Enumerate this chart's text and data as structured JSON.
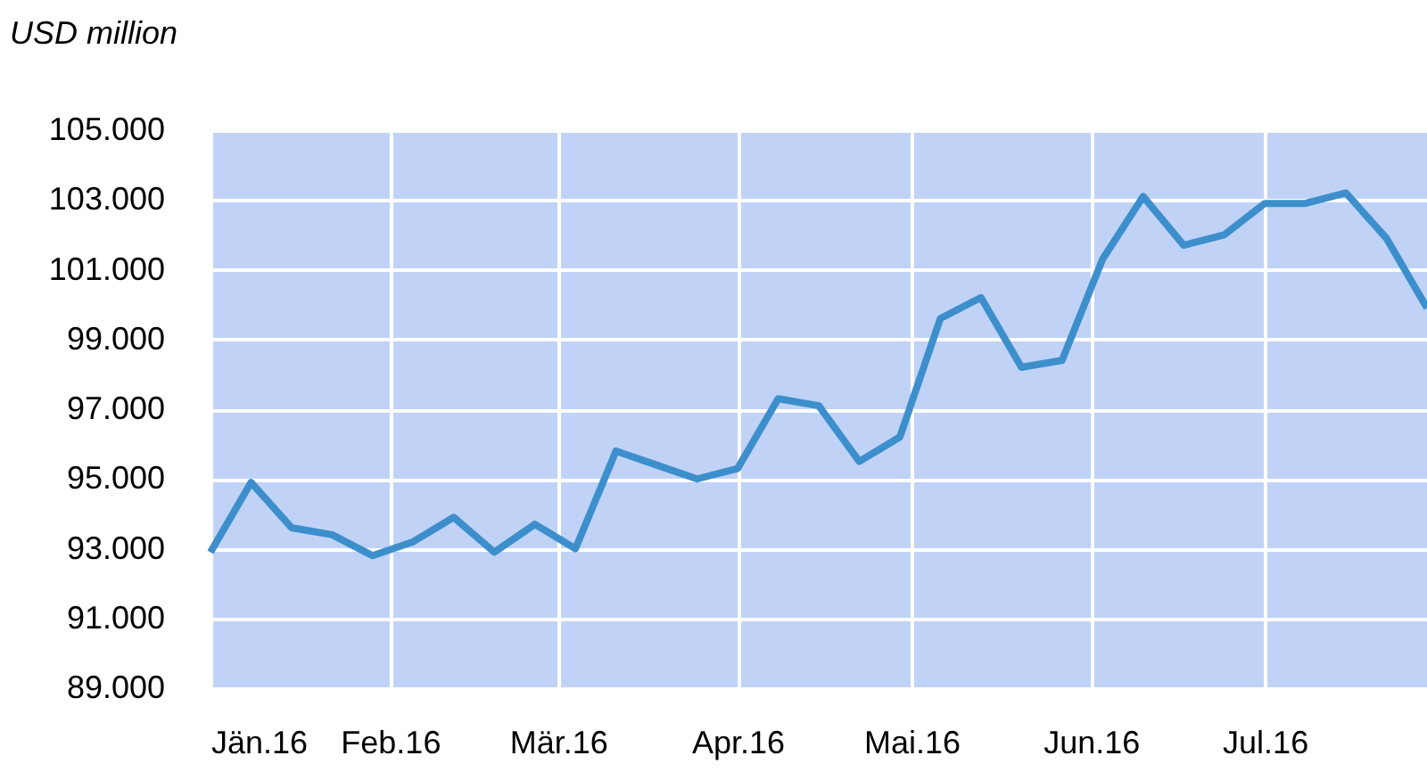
{
  "chart_data": {
    "type": "line",
    "ylabel": "USD million",
    "x": [
      "2016-01-01",
      "2016-01-08",
      "2016-01-15",
      "2016-01-22",
      "2016-01-29",
      "2016-02-05",
      "2016-02-12",
      "2016-02-19",
      "2016-02-26",
      "2016-03-04",
      "2016-03-11",
      "2016-03-18",
      "2016-03-25",
      "2016-04-01",
      "2016-04-08",
      "2016-04-15",
      "2016-04-22",
      "2016-04-29",
      "2016-05-06",
      "2016-05-13",
      "2016-05-20",
      "2016-05-27",
      "2016-06-03",
      "2016-06-10",
      "2016-06-17",
      "2016-06-24",
      "2016-07-01",
      "2016-07-08",
      "2016-07-15",
      "2016-07-22",
      "2016-07-29"
    ],
    "series": [
      {
        "color": "#3d8fcc",
        "values": [
          92900,
          94900,
          93600,
          93400,
          92800,
          93200,
          93900,
          92900,
          93700,
          93000,
          95800,
          95400,
          95000,
          95300,
          97300,
          97100,
          95500,
          96200,
          99600,
          100200,
          98200,
          98400,
          101300,
          103100,
          101700,
          102000,
          102900,
          102900,
          103200,
          101900,
          99900
        ]
      }
    ],
    "xlim": [
      "2016-01-01",
      "2016-07-29"
    ],
    "xticks": [
      {
        "value": "2016-01-01",
        "label": "Jän.16"
      },
      {
        "value": "2016-02-01",
        "label": "Feb.16"
      },
      {
        "value": "2016-03-01",
        "label": "Mär.16"
      },
      {
        "value": "2016-04-01",
        "label": "Apr.16"
      },
      {
        "value": "2016-05-01",
        "label": "Mai.16"
      },
      {
        "value": "2016-06-01",
        "label": "Jun.16"
      },
      {
        "value": "2016-07-01",
        "label": "Jul.16"
      }
    ],
    "ylim": [
      89000,
      105000
    ],
    "yticks": [
      {
        "value": 89000,
        "label": "89.000"
      },
      {
        "value": 91000,
        "label": "91.000"
      },
      {
        "value": 93000,
        "label": "93.000"
      },
      {
        "value": 95000,
        "label": "95.000"
      },
      {
        "value": 97000,
        "label": "97.000"
      },
      {
        "value": 99000,
        "label": "99.000"
      },
      {
        "value": 101000,
        "label": "101.000"
      },
      {
        "value": 103000,
        "label": "103.000"
      },
      {
        "value": 105000,
        "label": "105.000"
      }
    ],
    "grid": true,
    "marker": "none",
    "line_style": "solid"
  }
}
